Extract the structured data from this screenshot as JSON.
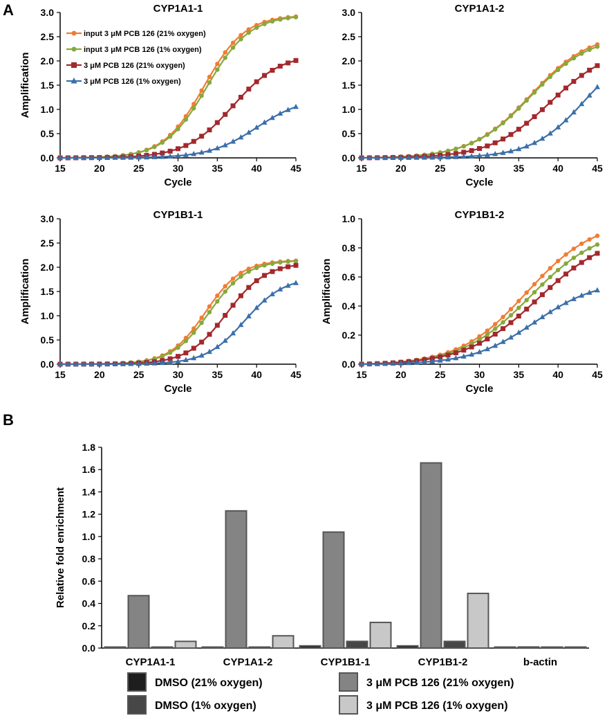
{
  "panel_labels": [
    "A",
    "B"
  ],
  "colors": {
    "input_21": "#f07c33",
    "input_1": "#86a83c",
    "pcb_21": "#a3282c",
    "pcb_1": "#3b6fa8",
    "dmso_21": "#1e1e1e",
    "dmso_1": "#474747",
    "bar_pcb_21": "#848484",
    "bar_pcb_1": "#c8c8c8"
  },
  "chart_data": [
    {
      "type": "line",
      "title": "CYP1A1-1",
      "xlabel": "Cycle",
      "ylabel": "Amplification",
      "xlim": [
        15,
        45
      ],
      "ylim": [
        0,
        3.0
      ],
      "xticks": [
        "15",
        "20",
        "25",
        "30",
        "35",
        "40",
        "45"
      ],
      "yticks": [
        "0.0",
        "0.5",
        "1.0",
        "1.5",
        "2.0",
        "2.5",
        "3.0"
      ],
      "legend": "top-left",
      "series": [
        {
          "name": "input 3 μM PCB 126 (21% oxygen)",
          "color_key": "input_21",
          "marker": "circle",
          "logistic": {
            "max": 2.95,
            "mid": 33.3,
            "slope": 2.6
          }
        },
        {
          "name": "input 3 μM PCB 126 (1% oxygen)",
          "color_key": "input_1",
          "marker": "circle",
          "logistic": {
            "max": 2.95,
            "mid": 33.7,
            "slope": 2.7
          }
        },
        {
          "name": "3 μM PCB 126 (21% oxygen)",
          "color_key": "pcb_21",
          "marker": "square",
          "logistic": {
            "max": 2.15,
            "mid": 37.0,
            "slope": 3.0
          }
        },
        {
          "name": "3 μM PCB 126 (1% oxygen)",
          "color_key": "pcb_1",
          "marker": "triangle",
          "logistic": {
            "max": 1.25,
            "mid": 40.0,
            "slope": 3.0
          }
        }
      ]
    },
    {
      "type": "line",
      "title": "CYP1A1-2",
      "xlabel": "Cycle",
      "ylabel": "",
      "xlim": [
        15,
        45
      ],
      "ylim": [
        0,
        3.0
      ],
      "xticks": [
        "15",
        "20",
        "25",
        "30",
        "35",
        "40",
        "45"
      ],
      "yticks": [
        "0.0",
        "0.5",
        "1.0",
        "1.5",
        "2.0",
        "2.5",
        "3.0"
      ],
      "series": [
        {
          "color_key": "input_21",
          "marker": "circle",
          "logistic": {
            "max": 2.6,
            "mid": 36.5,
            "slope": 3.8
          }
        },
        {
          "color_key": "input_1",
          "marker": "circle",
          "logistic": {
            "max": 2.55,
            "mid": 36.5,
            "slope": 3.8
          }
        },
        {
          "color_key": "pcb_21",
          "marker": "square",
          "logistic": {
            "max": 2.3,
            "mid": 39.0,
            "slope": 3.8
          }
        },
        {
          "color_key": "pcb_1",
          "marker": "triangle",
          "logistic": {
            "max": 2.4,
            "mid": 43.5,
            "slope": 3.4
          }
        }
      ]
    },
    {
      "type": "line",
      "title": "CYP1B1-1",
      "xlabel": "Cycle",
      "ylabel": "Amplification",
      "xlim": [
        15,
        45
      ],
      "ylim": [
        0,
        3.0
      ],
      "xticks": [
        "15",
        "20",
        "25",
        "30",
        "35",
        "40",
        "45"
      ],
      "yticks": [
        "0.0",
        "0.5",
        "1.0",
        "1.5",
        "2.0",
        "2.5",
        "3.0"
      ],
      "series": [
        {
          "color_key": "input_21",
          "marker": "circle",
          "logistic": {
            "max": 2.15,
            "mid": 33.5,
            "slope": 2.3
          }
        },
        {
          "color_key": "input_1",
          "marker": "circle",
          "logistic": {
            "max": 2.15,
            "mid": 34.0,
            "slope": 2.4
          }
        },
        {
          "color_key": "pcb_21",
          "marker": "square",
          "logistic": {
            "max": 2.1,
            "mid": 36.2,
            "slope": 2.5
          }
        },
        {
          "color_key": "pcb_1",
          "marker": "triangle",
          "logistic": {
            "max": 1.8,
            "mid": 38.5,
            "slope": 2.5
          }
        }
      ]
    },
    {
      "type": "line",
      "title": "CYP1B1-2",
      "xlabel": "Cycle",
      "ylabel": "Amplification",
      "xlim": [
        15,
        45
      ],
      "ylim": [
        0,
        1.0
      ],
      "xticks": [
        "15",
        "20",
        "25",
        "30",
        "35",
        "40",
        "45"
      ],
      "yticks": [
        "0.0",
        "0.2",
        "0.4",
        "0.6",
        "0.8",
        "1.0"
      ],
      "series": [
        {
          "color_key": "input_21",
          "marker": "circle",
          "logistic": {
            "max": 1.0,
            "mid": 36.0,
            "slope": 4.3
          }
        },
        {
          "color_key": "input_1",
          "marker": "circle",
          "logistic": {
            "max": 0.95,
            "mid": 36.5,
            "slope": 4.4
          }
        },
        {
          "color_key": "pcb_21",
          "marker": "square",
          "logistic": {
            "max": 0.92,
            "mid": 37.5,
            "slope": 4.6
          }
        },
        {
          "color_key": "pcb_1",
          "marker": "triangle",
          "logistic": {
            "max": 0.58,
            "mid": 37.0,
            "slope": 4.0
          }
        }
      ]
    },
    {
      "type": "bar",
      "title": "",
      "xlabel": "",
      "ylabel": "Relative fold enrichment",
      "ylim": [
        0,
        1.8
      ],
      "yticks": [
        "0.0",
        "0.2",
        "0.4",
        "0.6",
        "0.8",
        "1.0",
        "1.2",
        "1.4",
        "1.6",
        "1.8"
      ],
      "categories": [
        "CYP1A1-1",
        "CYP1A1-2",
        "CYP1B1-1",
        "CYP1B1-2",
        "b-actin"
      ],
      "legend": "bottom",
      "series": [
        {
          "name": "DMSO (21% oxygen)",
          "color_key": "dmso_21",
          "values": [
            0.0,
            0.005,
            0.02,
            0.02,
            0.005
          ]
        },
        {
          "name": "3 μM PCB 126 (21% oxygen)",
          "color_key": "bar_pcb_21",
          "values": [
            0.47,
            1.23,
            1.04,
            1.66,
            0.01
          ]
        },
        {
          "name": "DMSO (1% oxygen)",
          "color_key": "dmso_1",
          "values": [
            0.0,
            0.0,
            0.06,
            0.06,
            0.005
          ]
        },
        {
          "name": "3 μM PCB 126 (1% oxygen)",
          "color_key": "bar_pcb_1",
          "values": [
            0.06,
            0.11,
            0.23,
            0.49,
            0.005
          ]
        }
      ]
    }
  ]
}
